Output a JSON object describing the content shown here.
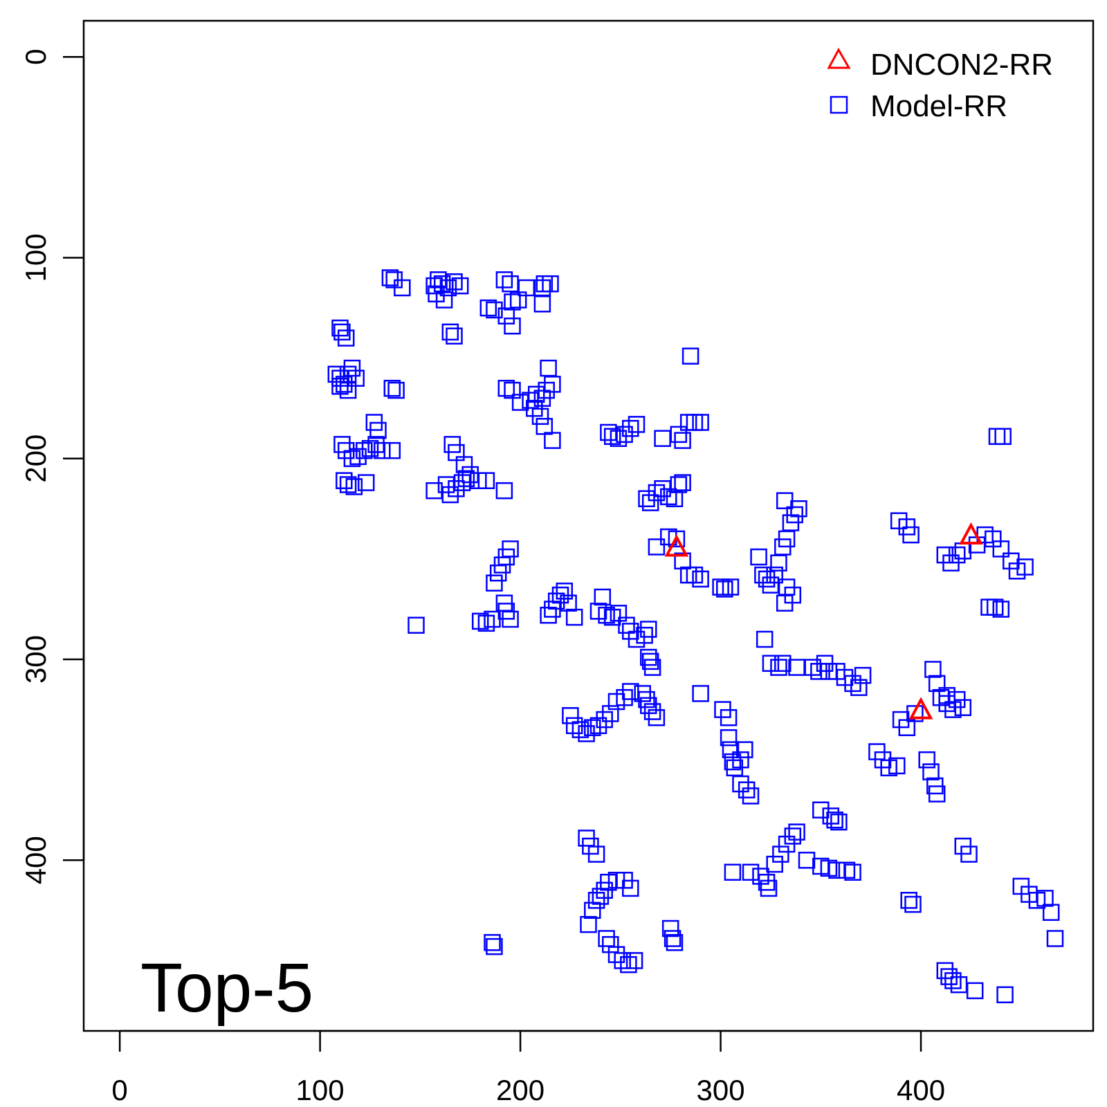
{
  "chart_data": {
    "type": "scatter",
    "panel_label": "Top-5",
    "xlim": [
      -18,
      486
    ],
    "ylim": [
      -18,
      485
    ],
    "y_reversed": true,
    "x_ticks": [
      "0",
      "100",
      "200",
      "300",
      "400"
    ],
    "y_ticks": [
      "0",
      "100",
      "200",
      "300",
      "400"
    ],
    "legend": {
      "position": "top-right",
      "entries": [
        "DNCON2-RR",
        "Model-RR"
      ]
    },
    "series": [
      {
        "name": "DNCON2-RR",
        "marker": "triangle",
        "color": "#ff0000",
        "points": [
          [
            278,
            244
          ],
          [
            400,
            325
          ],
          [
            425,
            238
          ]
        ]
      },
      {
        "name": "Model-RR",
        "marker": "square",
        "color": "#0000ff",
        "points": [
          [
            135,
            110
          ],
          [
            137,
            111
          ],
          [
            141,
            115
          ],
          [
            157,
            114
          ],
          [
            159,
            111
          ],
          [
            161,
            113
          ],
          [
            164,
            115
          ],
          [
            167,
            112
          ],
          [
            170,
            114
          ],
          [
            158,
            118
          ],
          [
            162,
            121
          ],
          [
            184,
            125
          ],
          [
            187,
            126
          ],
          [
            192,
            111
          ],
          [
            195,
            113
          ],
          [
            196,
            122
          ],
          [
            199,
            121
          ],
          [
            203,
            115
          ],
          [
            211,
            115
          ],
          [
            212,
            113
          ],
          [
            215,
            113
          ],
          [
            211,
            123
          ],
          [
            193,
            129
          ],
          [
            196,
            134
          ],
          [
            110,
            135
          ],
          [
            111,
            137
          ],
          [
            113,
            140
          ],
          [
            165,
            137
          ],
          [
            167,
            139
          ],
          [
            285,
            149
          ],
          [
            108,
            158
          ],
          [
            110,
            160
          ],
          [
            112,
            163
          ],
          [
            114,
            158
          ],
          [
            116,
            155
          ],
          [
            118,
            160
          ],
          [
            110,
            164
          ],
          [
            114,
            166
          ],
          [
            136,
            165
          ],
          [
            138,
            166
          ],
          [
            193,
            165
          ],
          [
            196,
            166
          ],
          [
            200,
            172
          ],
          [
            205,
            171
          ],
          [
            208,
            168
          ],
          [
            211,
            170
          ],
          [
            213,
            166
          ],
          [
            216,
            163
          ],
          [
            214,
            155
          ],
          [
            207,
            175
          ],
          [
            210,
            179
          ],
          [
            212,
            184
          ],
          [
            216,
            191
          ],
          [
            127,
            182
          ],
          [
            129,
            186
          ],
          [
            111,
            193
          ],
          [
            113,
            196
          ],
          [
            116,
            200
          ],
          [
            119,
            199
          ],
          [
            122,
            196
          ],
          [
            125,
            195
          ],
          [
            128,
            193
          ],
          [
            131,
            196
          ],
          [
            136,
            196
          ],
          [
            112,
            211
          ],
          [
            114,
            213
          ],
          [
            117,
            214
          ],
          [
            123,
            212
          ],
          [
            157,
            216
          ],
          [
            163,
            213
          ],
          [
            165,
            218
          ],
          [
            168,
            215
          ],
          [
            171,
            212
          ],
          [
            173,
            210
          ],
          [
            175,
            208
          ],
          [
            166,
            193
          ],
          [
            168,
            197
          ],
          [
            172,
            203
          ],
          [
            179,
            211
          ],
          [
            183,
            211
          ],
          [
            192,
            216
          ],
          [
            244,
            187
          ],
          [
            246,
            189
          ],
          [
            249,
            190
          ],
          [
            252,
            188
          ],
          [
            255,
            185
          ],
          [
            258,
            183
          ],
          [
            271,
            190
          ],
          [
            279,
            188
          ],
          [
            281,
            191
          ],
          [
            284,
            182
          ],
          [
            287,
            182
          ],
          [
            290,
            182
          ],
          [
            263,
            220
          ],
          [
            265,
            222
          ],
          [
            268,
            217
          ],
          [
            271,
            215
          ],
          [
            274,
            219
          ],
          [
            277,
            220
          ],
          [
            279,
            213
          ],
          [
            281,
            212
          ],
          [
            268,
            244
          ],
          [
            274,
            239
          ],
          [
            278,
            240
          ],
          [
            281,
            251
          ],
          [
            284,
            258
          ],
          [
            287,
            258
          ],
          [
            290,
            260
          ],
          [
            300,
            264
          ],
          [
            302,
            265
          ],
          [
            305,
            264
          ],
          [
            319,
            249
          ],
          [
            321,
            258
          ],
          [
            323,
            260
          ],
          [
            325,
            263
          ],
          [
            327,
            258
          ],
          [
            329,
            252
          ],
          [
            331,
            244
          ],
          [
            333,
            240
          ],
          [
            335,
            232
          ],
          [
            337,
            228
          ],
          [
            339,
            225
          ],
          [
            332,
            221
          ],
          [
            333,
            264
          ],
          [
            336,
            268
          ],
          [
            332,
            272
          ],
          [
            389,
            231
          ],
          [
            393,
            234
          ],
          [
            395,
            238
          ],
          [
            412,
            248
          ],
          [
            415,
            252
          ],
          [
            418,
            248
          ],
          [
            421,
            246
          ],
          [
            428,
            243
          ],
          [
            432,
            238
          ],
          [
            436,
            240
          ],
          [
            440,
            245
          ],
          [
            445,
            251
          ],
          [
            448,
            256
          ],
          [
            452,
            254
          ],
          [
            438,
            189
          ],
          [
            441,
            189
          ],
          [
            434,
            274
          ],
          [
            437,
            274
          ],
          [
            440,
            275
          ],
          [
            180,
            281
          ],
          [
            183,
            282
          ],
          [
            186,
            280
          ],
          [
            187,
            262
          ],
          [
            189,
            257
          ],
          [
            191,
            253
          ],
          [
            193,
            249
          ],
          [
            195,
            245
          ],
          [
            192,
            272
          ],
          [
            193,
            276
          ],
          [
            195,
            280
          ],
          [
            148,
            283
          ],
          [
            214,
            278
          ],
          [
            216,
            275
          ],
          [
            218,
            271
          ],
          [
            220,
            268
          ],
          [
            222,
            266
          ],
          [
            224,
            272
          ],
          [
            227,
            279
          ],
          [
            239,
            276
          ],
          [
            241,
            269
          ],
          [
            243,
            278
          ],
          [
            246,
            279
          ],
          [
            249,
            277
          ],
          [
            253,
            283
          ],
          [
            255,
            286
          ],
          [
            258,
            290
          ],
          [
            262,
            288
          ],
          [
            264,
            285
          ],
          [
            264,
            299
          ],
          [
            265,
            301
          ],
          [
            266,
            304
          ],
          [
            290,
            317
          ],
          [
            322,
            290
          ],
          [
            325,
            302
          ],
          [
            329,
            304
          ],
          [
            331,
            302
          ],
          [
            338,
            304
          ],
          [
            346,
            304
          ],
          [
            349,
            306
          ],
          [
            352,
            302
          ],
          [
            354,
            306
          ],
          [
            358,
            306
          ],
          [
            362,
            309
          ],
          [
            366,
            312
          ],
          [
            369,
            314
          ],
          [
            371,
            308
          ],
          [
            301,
            325
          ],
          [
            304,
            329
          ],
          [
            304,
            339
          ],
          [
            305,
            345
          ],
          [
            306,
            351
          ],
          [
            307,
            354
          ],
          [
            310,
            350
          ],
          [
            312,
            345
          ],
          [
            310,
            362
          ],
          [
            313,
            365
          ],
          [
            315,
            368
          ],
          [
            225,
            328
          ],
          [
            227,
            333
          ],
          [
            230,
            335
          ],
          [
            233,
            337
          ],
          [
            236,
            334
          ],
          [
            239,
            333
          ],
          [
            242,
            330
          ],
          [
            245,
            327
          ],
          [
            248,
            321
          ],
          [
            252,
            319
          ],
          [
            255,
            316
          ],
          [
            261,
            317
          ],
          [
            263,
            320
          ],
          [
            264,
            323
          ],
          [
            266,
            326
          ],
          [
            268,
            329
          ],
          [
            390,
            330
          ],
          [
            393,
            334
          ],
          [
            397,
            327
          ],
          [
            406,
            305
          ],
          [
            408,
            312
          ],
          [
            410,
            319
          ],
          [
            413,
            322
          ],
          [
            416,
            325
          ],
          [
            421,
            324
          ],
          [
            413,
            318
          ],
          [
            418,
            320
          ],
          [
            378,
            346
          ],
          [
            381,
            350
          ],
          [
            384,
            354
          ],
          [
            388,
            353
          ],
          [
            403,
            350
          ],
          [
            405,
            356
          ],
          [
            407,
            363
          ],
          [
            408,
            367
          ],
          [
            233,
            389
          ],
          [
            235,
            393
          ],
          [
            238,
            397
          ],
          [
            350,
            375
          ],
          [
            355,
            378
          ],
          [
            357,
            380
          ],
          [
            359,
            381
          ],
          [
            306,
            406
          ],
          [
            315,
            406
          ],
          [
            320,
            408
          ],
          [
            323,
            411
          ],
          [
            324,
            414
          ],
          [
            327,
            402
          ],
          [
            330,
            397
          ],
          [
            333,
            392
          ],
          [
            336,
            388
          ],
          [
            338,
            386
          ],
          [
            343,
            400
          ],
          [
            350,
            403
          ],
          [
            354,
            404
          ],
          [
            358,
            405
          ],
          [
            363,
            405
          ],
          [
            366,
            406
          ],
          [
            421,
            393
          ],
          [
            424,
            397
          ],
          [
            394,
            420
          ],
          [
            396,
            422
          ],
          [
            186,
            441
          ],
          [
            187,
            443
          ],
          [
            234,
            432
          ],
          [
            236,
            425
          ],
          [
            238,
            420
          ],
          [
            240,
            418
          ],
          [
            242,
            415
          ],
          [
            244,
            411
          ],
          [
            248,
            410
          ],
          [
            252,
            410
          ],
          [
            255,
            414
          ],
          [
            243,
            439
          ],
          [
            245,
            442
          ],
          [
            248,
            447
          ],
          [
            251,
            450
          ],
          [
            254,
            452
          ],
          [
            257,
            450
          ],
          [
            275,
            434
          ],
          [
            276,
            439
          ],
          [
            277,
            441
          ],
          [
            412,
            455
          ],
          [
            414,
            458
          ],
          [
            416,
            460
          ],
          [
            419,
            462
          ],
          [
            427,
            465
          ],
          [
            442,
            467
          ],
          [
            450,
            413
          ],
          [
            454,
            417
          ],
          [
            458,
            420
          ],
          [
            462,
            419
          ],
          [
            465,
            426
          ],
          [
            467,
            439
          ]
        ]
      }
    ]
  }
}
